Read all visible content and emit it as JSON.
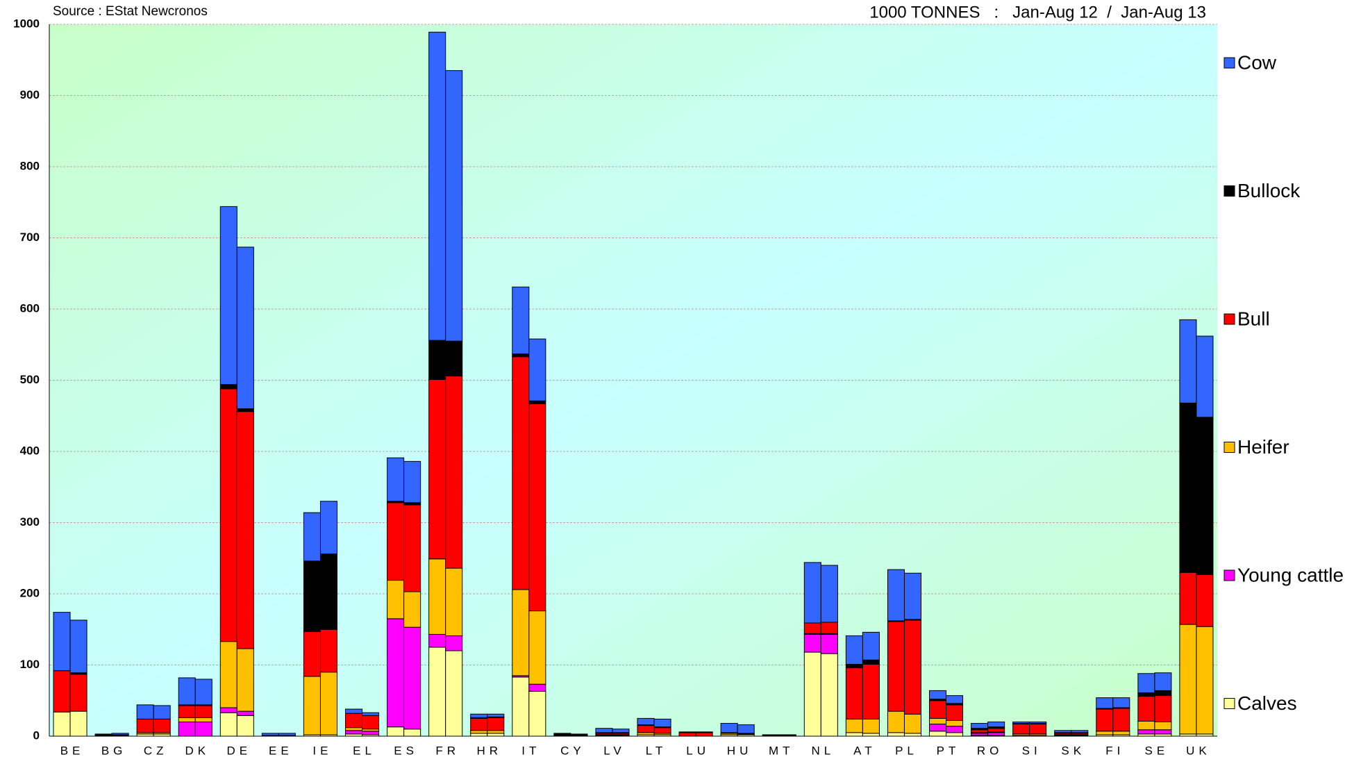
{
  "chart_data": {
    "type": "grouped-stacked-bar",
    "source": "Source : EStat Newcronos",
    "subtitle": "1000 TONNES   :   Jan-Aug 12  /  Jan-Aug 13",
    "categories": [
      "BE",
      "BG",
      "CZ",
      "DK",
      "DE",
      "EE",
      "IE",
      "EL",
      "ES",
      "FR",
      "HR",
      "IT",
      "CY",
      "LV",
      "LT",
      "LU",
      "HU",
      "MT",
      "NL",
      "AT",
      "PL",
      "PT",
      "RO",
      "SI",
      "SK",
      "FI",
      "SE",
      "UK"
    ],
    "ylim": [
      0,
      1000
    ],
    "yticks": [
      0,
      100,
      200,
      300,
      400,
      500,
      600,
      700,
      800,
      900,
      1000
    ],
    "grid": true,
    "series": [
      {
        "name": "Calves",
        "color": "#ffff99",
        "values": [
          [
            34,
            35
          ],
          [
            0,
            0
          ],
          [
            3,
            3
          ],
          [
            0,
            0
          ],
          [
            33,
            29
          ],
          [
            0,
            0
          ],
          [
            2,
            2
          ],
          [
            3,
            2
          ],
          [
            13,
            10
          ],
          [
            125,
            120
          ],
          [
            4,
            4
          ],
          [
            83,
            63
          ],
          [
            0,
            0
          ],
          [
            1,
            1
          ],
          [
            2,
            2
          ],
          [
            0,
            0
          ],
          [
            2,
            2
          ],
          [
            0,
            0
          ],
          [
            118,
            116
          ],
          [
            5,
            4
          ],
          [
            5,
            4
          ],
          [
            7,
            5
          ],
          [
            1,
            1
          ],
          [
            1,
            1
          ],
          [
            1,
            1
          ],
          [
            2,
            2
          ],
          [
            3,
            3
          ],
          [
            3,
            3
          ]
        ]
      },
      {
        "name": "Young cattle",
        "color": "#ff00ff",
        "values": [
          [
            0,
            0
          ],
          [
            0,
            0
          ],
          [
            0,
            0
          ],
          [
            20,
            20
          ],
          [
            7,
            6
          ],
          [
            0,
            0
          ],
          [
            0,
            0
          ],
          [
            5,
            5
          ],
          [
            152,
            143
          ],
          [
            18,
            21
          ],
          [
            0,
            0
          ],
          [
            2,
            10
          ],
          [
            0,
            0
          ],
          [
            0,
            0
          ],
          [
            0,
            0
          ],
          [
            0,
            0
          ],
          [
            0,
            0
          ],
          [
            0,
            0
          ],
          [
            25,
            27
          ],
          [
            0,
            0
          ],
          [
            0,
            0
          ],
          [
            10,
            9
          ],
          [
            3,
            4
          ],
          [
            0,
            0
          ],
          [
            0,
            0
          ],
          [
            0,
            0
          ],
          [
            6,
            6
          ],
          [
            0,
            0
          ]
        ]
      },
      {
        "name": "Heifer",
        "color": "#ffc000",
        "values": [
          [
            0,
            0
          ],
          [
            0,
            0
          ],
          [
            2,
            2
          ],
          [
            6,
            6
          ],
          [
            93,
            88
          ],
          [
            0,
            0
          ],
          [
            82,
            88
          ],
          [
            4,
            3
          ],
          [
            54,
            50
          ],
          [
            106,
            95
          ],
          [
            4,
            4
          ],
          [
            121,
            103
          ],
          [
            0,
            0
          ],
          [
            1,
            1
          ],
          [
            3,
            2
          ],
          [
            0,
            0
          ],
          [
            2,
            1
          ],
          [
            0,
            0
          ],
          [
            1,
            1
          ],
          [
            19,
            20
          ],
          [
            30,
            27
          ],
          [
            8,
            8
          ],
          [
            1,
            1
          ],
          [
            2,
            2
          ],
          [
            1,
            1
          ],
          [
            5,
            5
          ],
          [
            12,
            11
          ],
          [
            154,
            151
          ]
        ]
      },
      {
        "name": "Bull",
        "color": "#ff0000",
        "values": [
          [
            58,
            52
          ],
          [
            1,
            1
          ],
          [
            19,
            19
          ],
          [
            17,
            17
          ],
          [
            355,
            333
          ],
          [
            1,
            1
          ],
          [
            63,
            60
          ],
          [
            20,
            19
          ],
          [
            109,
            122
          ],
          [
            252,
            270
          ],
          [
            17,
            18
          ],
          [
            327,
            291
          ],
          [
            1,
            1
          ],
          [
            2,
            2
          ],
          [
            10,
            8
          ],
          [
            5,
            5
          ],
          [
            1,
            1
          ],
          [
            1,
            1
          ],
          [
            15,
            16
          ],
          [
            72,
            77
          ],
          [
            126,
            132
          ],
          [
            25,
            22
          ],
          [
            4,
            5
          ],
          [
            14,
            14
          ],
          [
            2,
            2
          ],
          [
            31,
            32
          ],
          [
            35,
            37
          ],
          [
            73,
            73
          ]
        ]
      },
      {
        "name": "Bullock",
        "color": "#000000",
        "values": [
          [
            0,
            2
          ],
          [
            1,
            1
          ],
          [
            0,
            0
          ],
          [
            1,
            1
          ],
          [
            6,
            4
          ],
          [
            0,
            0
          ],
          [
            99,
            106
          ],
          [
            0,
            0
          ],
          [
            2,
            3
          ],
          [
            55,
            49
          ],
          [
            1,
            1
          ],
          [
            4,
            4
          ],
          [
            2,
            1
          ],
          [
            1,
            1
          ],
          [
            1,
            1
          ],
          [
            1,
            1
          ],
          [
            0,
            0
          ],
          [
            0,
            0
          ],
          [
            0,
            0
          ],
          [
            5,
            6
          ],
          [
            1,
            1
          ],
          [
            2,
            2
          ],
          [
            2,
            2
          ],
          [
            1,
            1
          ],
          [
            1,
            1
          ],
          [
            1,
            1
          ],
          [
            5,
            7
          ],
          [
            238,
            221
          ]
        ]
      },
      {
        "name": "Cow",
        "color": "#3366ff",
        "values": [
          [
            82,
            74
          ],
          [
            1,
            2
          ],
          [
            20,
            19
          ],
          [
            38,
            36
          ],
          [
            250,
            227
          ],
          [
            3,
            3
          ],
          [
            68,
            74
          ],
          [
            6,
            4
          ],
          [
            61,
            58
          ],
          [
            433,
            380
          ],
          [
            5,
            4
          ],
          [
            94,
            87
          ],
          [
            1,
            1
          ],
          [
            6,
            5
          ],
          [
            9,
            11
          ],
          [
            0,
            0
          ],
          [
            13,
            12
          ],
          [
            1,
            1
          ],
          [
            85,
            80
          ],
          [
            40,
            39
          ],
          [
            72,
            65
          ],
          [
            12,
            11
          ],
          [
            7,
            7
          ],
          [
            2,
            2
          ],
          [
            3,
            3
          ],
          [
            15,
            14
          ],
          [
            27,
            25
          ],
          [
            117,
            114
          ]
        ]
      }
    ]
  }
}
